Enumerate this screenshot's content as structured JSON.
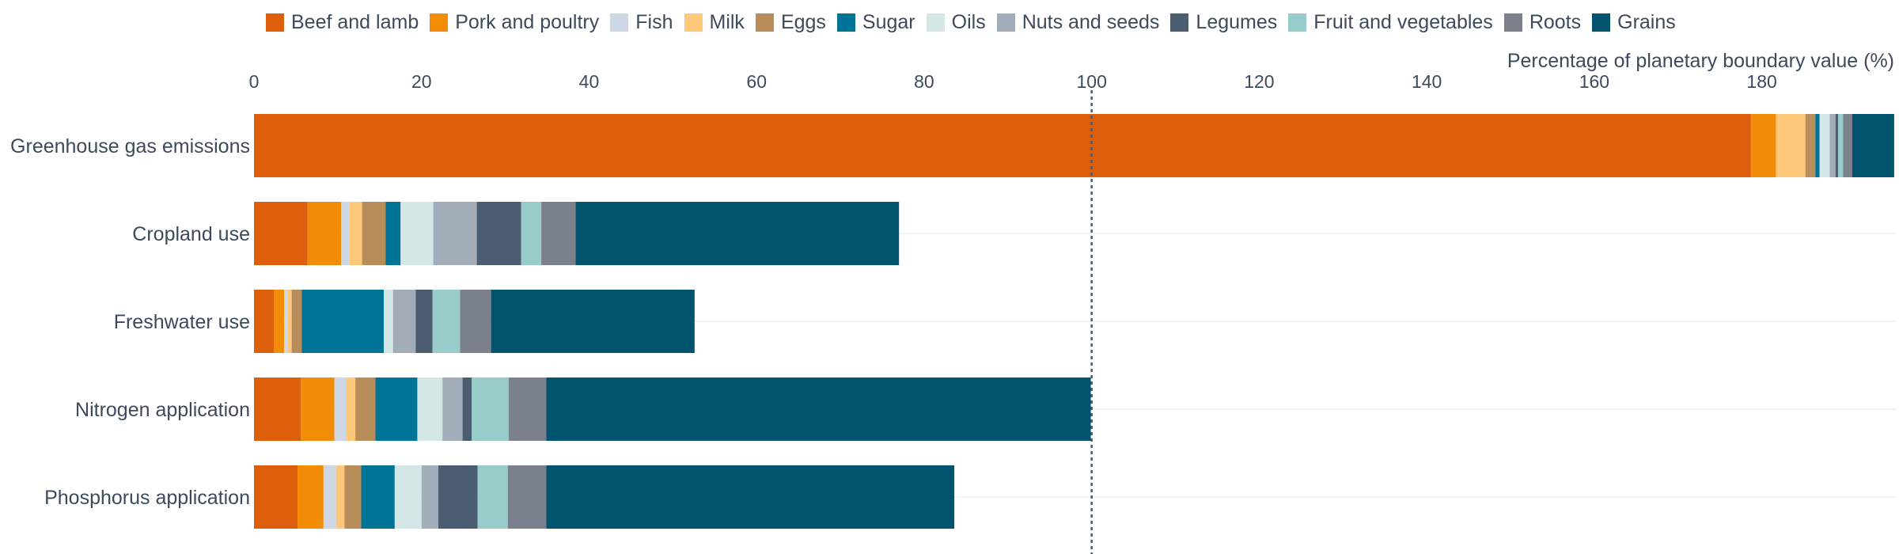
{
  "chart_data": {
    "type": "bar",
    "orientation": "horizontal",
    "stacked": true,
    "xlabel": "Percentage of planetary boundary value (%)",
    "xlim": [
      0,
      196
    ],
    "xticks": [
      0,
      20,
      40,
      60,
      80,
      100,
      120,
      140,
      160,
      180
    ],
    "reference_line": 100,
    "legend_position": "top",
    "categories": [
      "Greenhouse gas emissions",
      "Cropland use",
      "Freshwater use",
      "Nitrogen application",
      "Phosphorus application"
    ],
    "series": [
      {
        "name": "Beef and lamb",
        "color": "#dd5e0b",
        "values": [
          178.7,
          6.4,
          2.4,
          5.6,
          5.2
        ]
      },
      {
        "name": "Pork and poultry",
        "color": "#f28c06",
        "values": [
          3.0,
          4.0,
          1.2,
          4.0,
          3.1
        ]
      },
      {
        "name": "Fish",
        "color": "#cdd8e4",
        "values": [
          0,
          1.0,
          0.4,
          1.4,
          1.5
        ]
      },
      {
        "name": "Milk",
        "color": "#fdc87a",
        "values": [
          3.5,
          1.5,
          0.5,
          1.1,
          1.0
        ]
      },
      {
        "name": "Eggs",
        "color": "#b88d59",
        "values": [
          1.2,
          2.8,
          1.2,
          2.4,
          2.0
        ]
      },
      {
        "name": "Sugar",
        "color": "#007496",
        "values": [
          0.5,
          1.8,
          9.8,
          5.0,
          4.0
        ]
      },
      {
        "name": "Oils",
        "color": "#d3e7e6",
        "values": [
          1.2,
          3.9,
          1.1,
          3.0,
          3.2
        ]
      },
      {
        "name": "Nuts and seeds",
        "color": "#a2adb9",
        "values": [
          0.7,
          5.2,
          2.7,
          2.4,
          2.0
        ]
      },
      {
        "name": "Legumes",
        "color": "#4b5e71",
        "values": [
          0.3,
          5.3,
          2.0,
          1.1,
          4.7
        ]
      },
      {
        "name": "Fruit and vegetables",
        "color": "#98ccca",
        "values": [
          0.6,
          2.4,
          3.3,
          4.4,
          3.6
        ]
      },
      {
        "name": "Roots",
        "color": "#7a818d",
        "values": [
          1.1,
          4.1,
          3.7,
          4.5,
          4.6
        ]
      },
      {
        "name": "Grains",
        "color": "#02546e",
        "values": [
          5.0,
          38.6,
          24.3,
          65.0,
          48.7
        ]
      }
    ]
  }
}
